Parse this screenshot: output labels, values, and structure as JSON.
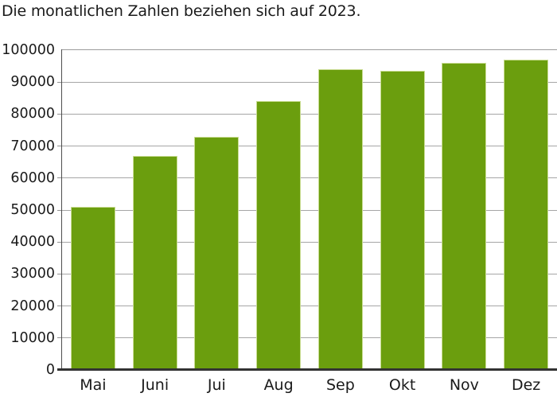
{
  "title": "Die monatlichen Zahlen beziehen sich auf 2023.",
  "chart_data": {
    "type": "bar",
    "categories": [
      "Mai",
      "Juni",
      "Jui",
      "Aug",
      "Sep",
      "Okt",
      "Nov",
      "Dez"
    ],
    "values": [
      51000,
      67000,
      73000,
      84000,
      94000,
      93500,
      96000,
      97000
    ],
    "title": "Die monatlichen Zahlen beziehen sich auf 2023.",
    "xlabel": "",
    "ylabel": "",
    "ylim": [
      0,
      100000
    ],
    "ytick_step": 10000,
    "yticklabels": [
      "0",
      "10000",
      "20000",
      "30000",
      "40000",
      "50000",
      "60000",
      "70000",
      "80000",
      "90000",
      "100000"
    ],
    "grid": true,
    "legend": false,
    "bar_color": "#6b9e0e",
    "bar_edge_color": "#c9dc92",
    "grid_color": "#a6a6a6",
    "axis_color": "#333333"
  }
}
